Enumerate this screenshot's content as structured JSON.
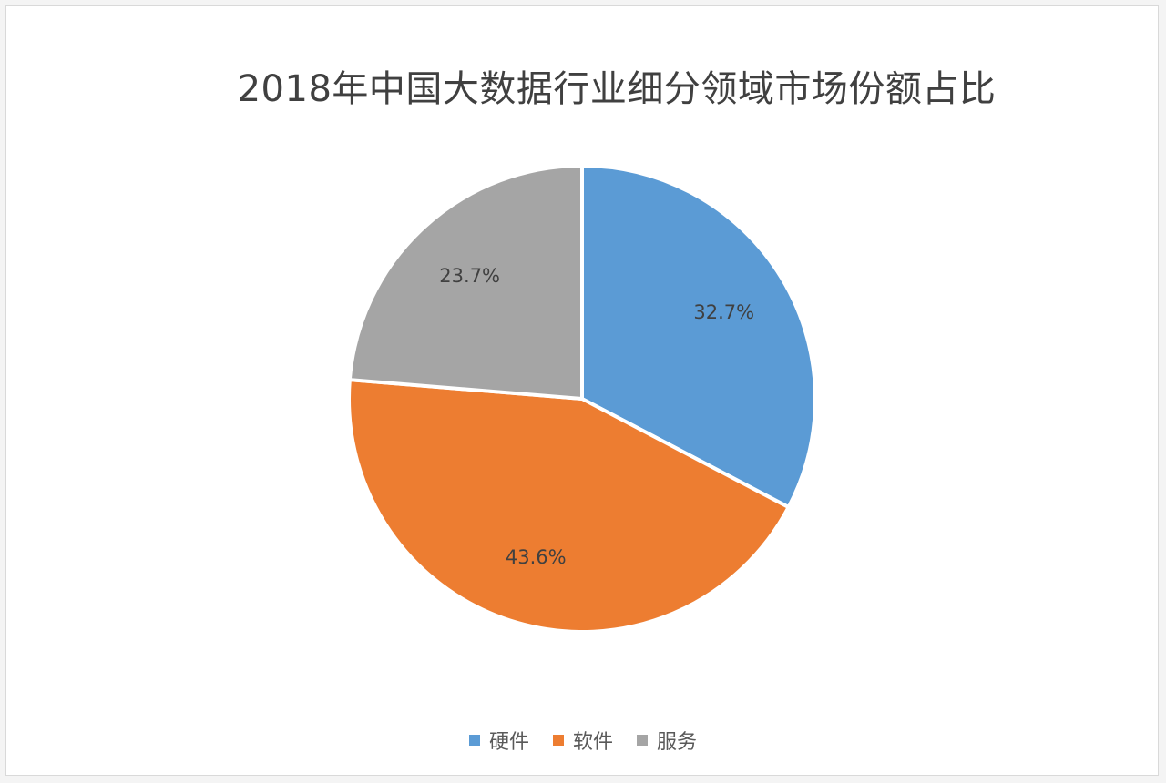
{
  "chart_data": {
    "type": "pie",
    "title": "2018年中国大数据行业细分领域市场份额占比",
    "categories": [
      "硬件",
      "软件",
      "服务"
    ],
    "values": [
      32.7,
      43.6,
      23.7
    ],
    "value_labels": [
      "32.7%",
      "43.6%",
      "23.7%"
    ],
    "colors": [
      "#5b9bd5",
      "#ed7d31",
      "#a5a5a5"
    ],
    "legend_position": "bottom",
    "start_angle": "12 o'clock, clockwise"
  }
}
